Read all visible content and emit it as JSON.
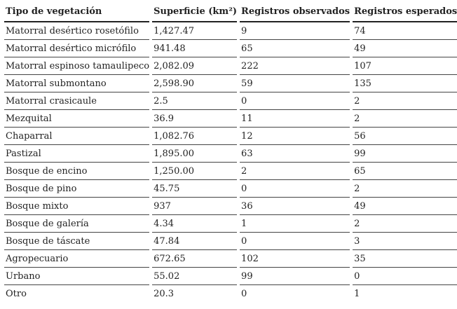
{
  "table": {
    "header": [
      "Tipo de vegetación",
      "Superficie (km²)",
      "Registros observados",
      "Registros esperados"
    ],
    "rows": [
      [
        "Matorral desértico rosetófilo",
        "1,427.47",
        "9",
        "74"
      ],
      [
        "Matorral desértico micrófilo",
        "941.48",
        "65",
        "49"
      ],
      [
        "Matorral espinoso tamaulipeco",
        "2,082.09",
        "222",
        "107"
      ],
      [
        "Matorral submontano",
        "2,598.90",
        "59",
        "135"
      ],
      [
        "Matorral crasicaule",
        "2.5",
        "0",
        "2"
      ],
      [
        "Mezquital",
        "36.9",
        "11",
        "2"
      ],
      [
        "Chaparral",
        "1,082.76",
        "12",
        "56"
      ],
      [
        "Pastizal",
        "1,895.00",
        "63",
        "99"
      ],
      [
        "Bosque de encino",
        "1,250.00",
        "2",
        "65"
      ],
      [
        "Bosque de pino",
        "45.75",
        "0",
        "2"
      ],
      [
        "Bosque mixto",
        "937",
        "36",
        "49"
      ],
      [
        "Bosque de galería",
        "4.34",
        "1",
        "2"
      ],
      [
        "Bosque de táscate",
        "47.84",
        "0",
        "3"
      ],
      [
        "Agropecuario",
        "672.65",
        "102",
        "35"
      ],
      [
        "Urbano",
        "55.02",
        "99",
        "0"
      ],
      [
        "Otro",
        "20.3",
        "0",
        "1"
      ]
    ]
  }
}
